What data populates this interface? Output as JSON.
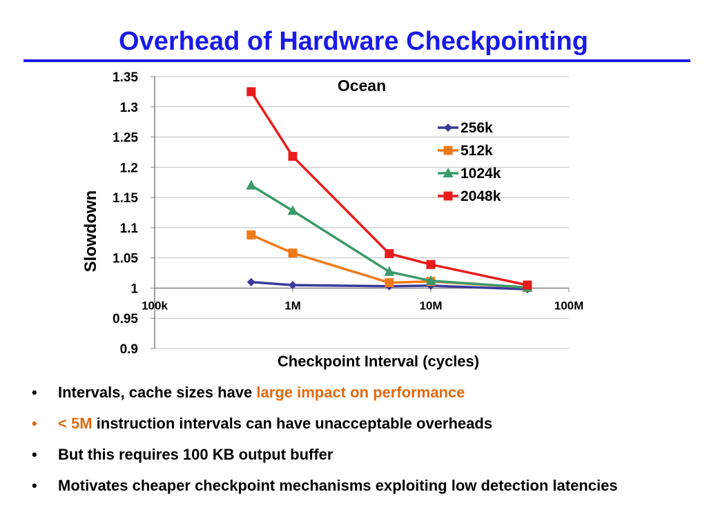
{
  "slide": {
    "title": "Overhead of Hardware Checkpointing"
  },
  "colors": {
    "title": "#1a1ae6",
    "accent": "#e06a10",
    "series_256k": "#3a3a9c",
    "series_512k": "#f07a1a",
    "series_1024k": "#3a9a6a",
    "series_2048k": "#e81c1c"
  },
  "chart_data": {
    "type": "line",
    "title": "Ocean",
    "xlabel": "Checkpoint Interval (cycles)",
    "ylabel": "Slowdown",
    "x_scale": "log",
    "xlim": [
      100000,
      100000000
    ],
    "ylim": [
      0.9,
      1.35
    ],
    "x_ticks": [
      {
        "value": 100000,
        "label": "100k"
      },
      {
        "value": 1000000,
        "label": "1M"
      },
      {
        "value": 10000000,
        "label": "10M"
      },
      {
        "value": 100000000,
        "label": "100M"
      }
    ],
    "y_ticks": [
      {
        "value": 1.35,
        "label": "1.35"
      },
      {
        "value": 1.3,
        "label": "1.3"
      },
      {
        "value": 1.25,
        "label": "1.25"
      },
      {
        "value": 1.2,
        "label": "1.2"
      },
      {
        "value": 1.15,
        "label": "1.15"
      },
      {
        "value": 1.1,
        "label": "1.1"
      },
      {
        "value": 1.05,
        "label": "1.05"
      },
      {
        "value": 1,
        "label": "1"
      },
      {
        "value": 0.95,
        "label": "0.95"
      },
      {
        "value": 0.9,
        "label": "0.9"
      }
    ],
    "x_axis_crosses_at": 1,
    "grid": "horizontal",
    "legend_position": "right",
    "x": [
      500000,
      1000000,
      5000000,
      10000000,
      50000000
    ],
    "series": [
      {
        "name": "256k",
        "marker": "diamond",
        "color": "#3a3a9c",
        "values": [
          1.01,
          1.005,
          1.003,
          1.004,
          0.998
        ]
      },
      {
        "name": "512k",
        "marker": "square",
        "color": "#f07a1a",
        "values": [
          1.088,
          1.058,
          1.009,
          1.011,
          1.001
        ]
      },
      {
        "name": "1024k",
        "marker": "triangle",
        "color": "#3a9a6a",
        "values": [
          1.17,
          1.128,
          1.027,
          1.012,
          1.001
        ]
      },
      {
        "name": "2048k",
        "marker": "square",
        "color": "#e81c1c",
        "values": [
          1.325,
          1.218,
          1.057,
          1.039,
          1.005
        ]
      }
    ]
  },
  "bullets": [
    {
      "prefix": "Intervals, cache sizes have ",
      "highlight": "large impact on performance",
      "suffix": "",
      "bullet_accent": false
    },
    {
      "prefix": "",
      "highlight": "< 5M",
      "suffix": " instruction intervals can have unacceptable overheads",
      "bullet_accent": true
    },
    {
      "prefix": "But this requires 100 KB output buffer",
      "highlight": "",
      "suffix": "",
      "bullet_accent": false
    },
    {
      "prefix": "Motivates cheaper checkpoint mechanisms exploiting low detection latencies",
      "highlight": "",
      "suffix": "",
      "bullet_accent": false
    }
  ]
}
